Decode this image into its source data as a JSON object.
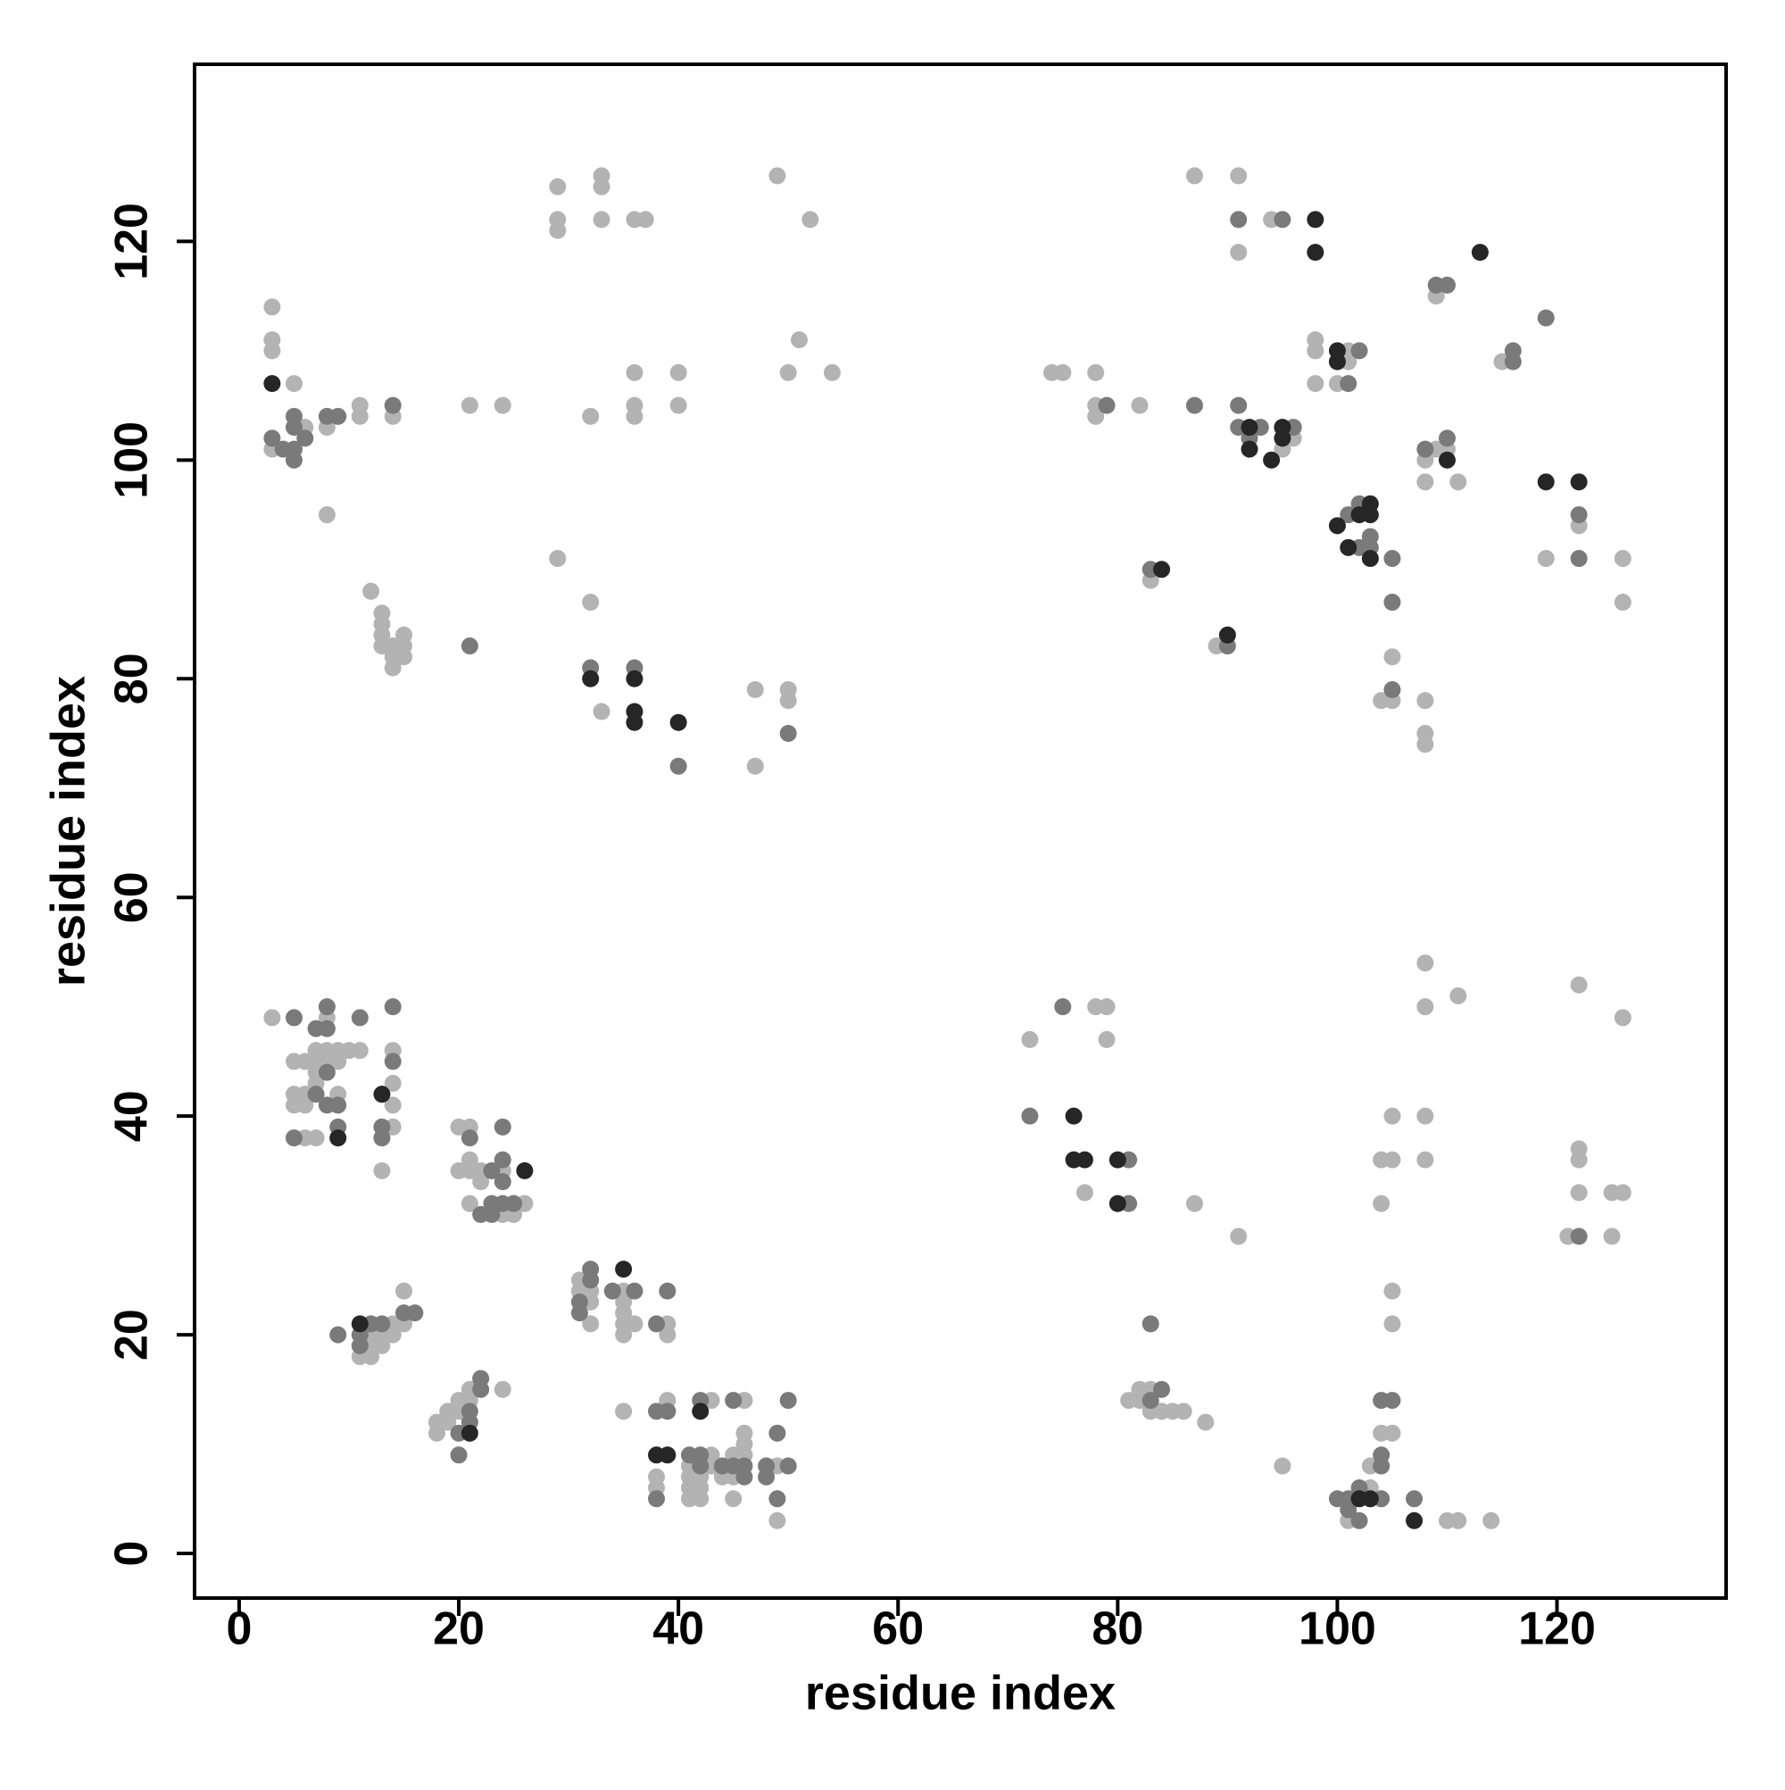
{
  "chart_data": {
    "type": "scatter",
    "x_label": "residue index",
    "y_label": "residue index",
    "xlim": [
      -4.06,
      135.4
    ],
    "ylim": [
      -4.08,
      136.2
    ],
    "xticks": [
      0,
      20,
      40,
      60,
      80,
      100,
      120
    ],
    "yticks": [
      0,
      20,
      40,
      60,
      80,
      100,
      120
    ],
    "grid": false,
    "series": [
      {
        "color": "#b3b3b3",
        "x": [
          3,
          3,
          3,
          3,
          5,
          6,
          8,
          8,
          11,
          11,
          14,
          21,
          24,
          12,
          13,
          13,
          13,
          13,
          14,
          14,
          14,
          15,
          15,
          15,
          29,
          29,
          29,
          33,
          33,
          33,
          36,
          37,
          49,
          52,
          51,
          50,
          54,
          36,
          36,
          36,
          40,
          40,
          32,
          29,
          32,
          33,
          47,
          50,
          50,
          47,
          87,
          91,
          91,
          94,
          74,
          75,
          78,
          78,
          78,
          82,
          98,
          98,
          98,
          100,
          101,
          101,
          96,
          95,
          109,
          108,
          108,
          110,
          111,
          115,
          109,
          119,
          122,
          126,
          126,
          83,
          89,
          105,
          104,
          105,
          108,
          108,
          108,
          3,
          5,
          5,
          5,
          6,
          6,
          6,
          6,
          7,
          7,
          7,
          7,
          7,
          8,
          8,
          8,
          9,
          9,
          9,
          10,
          11,
          14,
          14,
          14,
          14,
          13,
          20,
          21,
          21,
          20,
          21,
          22,
          23,
          24,
          22,
          21,
          24,
          25,
          25,
          26,
          12,
          12,
          13,
          13,
          14,
          14,
          15,
          15,
          12,
          11,
          18,
          18,
          19,
          19,
          20,
          20,
          21,
          21,
          24,
          31,
          31,
          32,
          32,
          32,
          35,
          35,
          35,
          35,
          35,
          36,
          39,
          39,
          35,
          39,
          43,
          46,
          38,
          38,
          41,
          41,
          41,
          41,
          42,
          42,
          43,
          43,
          44,
          45,
          45,
          45,
          46,
          46,
          46,
          49,
          49,
          42,
          72,
          78,
          79,
          79,
          77,
          87,
          91,
          81,
          82,
          82,
          83,
          83,
          84,
          85,
          86,
          88,
          95,
          103,
          101,
          103,
          108,
          108,
          108,
          108,
          111,
          105,
          104,
          105,
          104,
          105,
          105,
          104,
          105,
          110,
          111,
          114,
          122,
          126,
          122,
          122,
          122,
          125,
          126,
          121,
          125
        ],
        "y": [
          114,
          111,
          110,
          101,
          107,
          103,
          103,
          95,
          105,
          104,
          104,
          105,
          105,
          88,
          86,
          85,
          84,
          83,
          83,
          82,
          81,
          84,
          83,
          82,
          125,
          122,
          121,
          126,
          125,
          122,
          122,
          122,
          126,
          122,
          111,
          108,
          108,
          108,
          105,
          104,
          108,
          105,
          104,
          91,
          87,
          77,
          79,
          79,
          78,
          72,
          126,
          126,
          119,
          122,
          108,
          108,
          108,
          105,
          104,
          105,
          111,
          110,
          107,
          107,
          110,
          109,
          102,
          101,
          115,
          100,
          98,
          101,
          98,
          109,
          101,
          91,
          94,
          91,
          87,
          89,
          83,
          82,
          78,
          78,
          78,
          75,
          74,
          49,
          45,
          42,
          41,
          45,
          42,
          41,
          38,
          38,
          46,
          45,
          44,
          43,
          46,
          45,
          49,
          46,
          45,
          42,
          46,
          46,
          46,
          43,
          41,
          39,
          35,
          39,
          39,
          36,
          35,
          35,
          35,
          35,
          35,
          34,
          32,
          31,
          31,
          32,
          32,
          20,
          19,
          20,
          19,
          20,
          21,
          21,
          24,
          18,
          18,
          12,
          11,
          13,
          12,
          14,
          13,
          14,
          15,
          15,
          25,
          24,
          24,
          23,
          21,
          24,
          23,
          22,
          21,
          20,
          21,
          21,
          20,
          13,
          14,
          14,
          14,
          7,
          6,
          8,
          7,
          6,
          5,
          5,
          7,
          9,
          8,
          7,
          9,
          7,
          5,
          11,
          10,
          9,
          3,
          8,
          6,
          47,
          50,
          50,
          47,
          33,
          32,
          29,
          14,
          15,
          14,
          15,
          13,
          13,
          13,
          13,
          12,
          8,
          8,
          3,
          6,
          54,
          50,
          40,
          36,
          51,
          40,
          36,
          36,
          32,
          24,
          21,
          11,
          11,
          3,
          3,
          3,
          52,
          49,
          37,
          36,
          33,
          33,
          33,
          29,
          29
        ]
      },
      {
        "color": "#7a7a7a",
        "x": [
          3,
          4,
          5,
          5,
          5,
          5,
          6,
          8,
          9,
          14,
          21,
          32,
          36,
          40,
          50,
          91,
          95,
          79,
          87,
          91,
          91,
          92,
          93,
          96,
          101,
          102,
          101,
          102,
          103,
          103,
          105,
          105,
          105,
          108,
          110,
          109,
          116,
          116,
          119,
          122,
          122,
          83,
          90,
          110,
          102,
          5,
          5,
          7,
          7,
          8,
          8,
          8,
          8,
          9,
          9,
          11,
          14,
          14,
          13,
          13,
          21,
          24,
          24,
          24,
          22,
          23,
          23,
          24,
          25,
          23,
          9,
          11,
          11,
          12,
          13,
          15,
          16,
          20,
          21,
          21,
          22,
          22,
          20,
          31,
          31,
          32,
          32,
          34,
          36,
          38,
          39,
          38,
          39,
          42,
          45,
          50,
          38,
          41,
          42,
          42,
          44,
          45,
          46,
          46,
          48,
          48,
          49,
          49,
          50,
          72,
          75,
          81,
          81,
          83,
          83,
          84,
          100,
          101,
          101,
          102,
          102,
          104,
          104,
          104,
          105,
          104,
          107,
          122
        ],
        "y": [
          102,
          101,
          104,
          103,
          101,
          100,
          102,
          104,
          104,
          105,
          83,
          81,
          81,
          72,
          75,
          122,
          122,
          105,
          105,
          105,
          103,
          102,
          103,
          103,
          107,
          110,
          95,
          96,
          93,
          92,
          91,
          87,
          79,
          101,
          102,
          116,
          110,
          109,
          113,
          95,
          91,
          90,
          83,
          116,
          92,
          49,
          38,
          48,
          42,
          50,
          48,
          44,
          41,
          41,
          39,
          49,
          50,
          45,
          39,
          38,
          38,
          39,
          36,
          34,
          31,
          31,
          32,
          32,
          32,
          35,
          20,
          20,
          19,
          21,
          21,
          22,
          22,
          11,
          13,
          12,
          16,
          15,
          9,
          23,
          22,
          26,
          25,
          24,
          24,
          21,
          24,
          13,
          13,
          14,
          14,
          14,
          5,
          9,
          9,
          8,
          8,
          8,
          8,
          7,
          8,
          7,
          11,
          5,
          8,
          40,
          50,
          36,
          32,
          21,
          14,
          15,
          5,
          4,
          5,
          6,
          3,
          9,
          8,
          14,
          14,
          5,
          5,
          29
        ]
      },
      {
        "color": "#262626",
        "x": [
          3,
          32,
          36,
          36,
          36,
          40,
          98,
          98,
          113,
          100,
          100,
          92,
          92,
          94,
          95,
          95,
          100,
          101,
          103,
          102,
          103,
          103,
          110,
          119,
          122,
          84,
          90,
          13,
          9,
          26,
          11,
          21,
          35,
          38,
          39,
          42,
          76,
          76,
          77,
          80,
          80,
          102,
          103,
          107
        ],
        "y": [
          107,
          80,
          80,
          77,
          76,
          76,
          122,
          119,
          119,
          110,
          109,
          103,
          101,
          100,
          103,
          102,
          94,
          92,
          91,
          95,
          96,
          95,
          100,
          98,
          98,
          90,
          84,
          42,
          38,
          35,
          21,
          11,
          26,
          9,
          9,
          13,
          40,
          36,
          36,
          36,
          32,
          5,
          5,
          3
        ]
      }
    ]
  }
}
